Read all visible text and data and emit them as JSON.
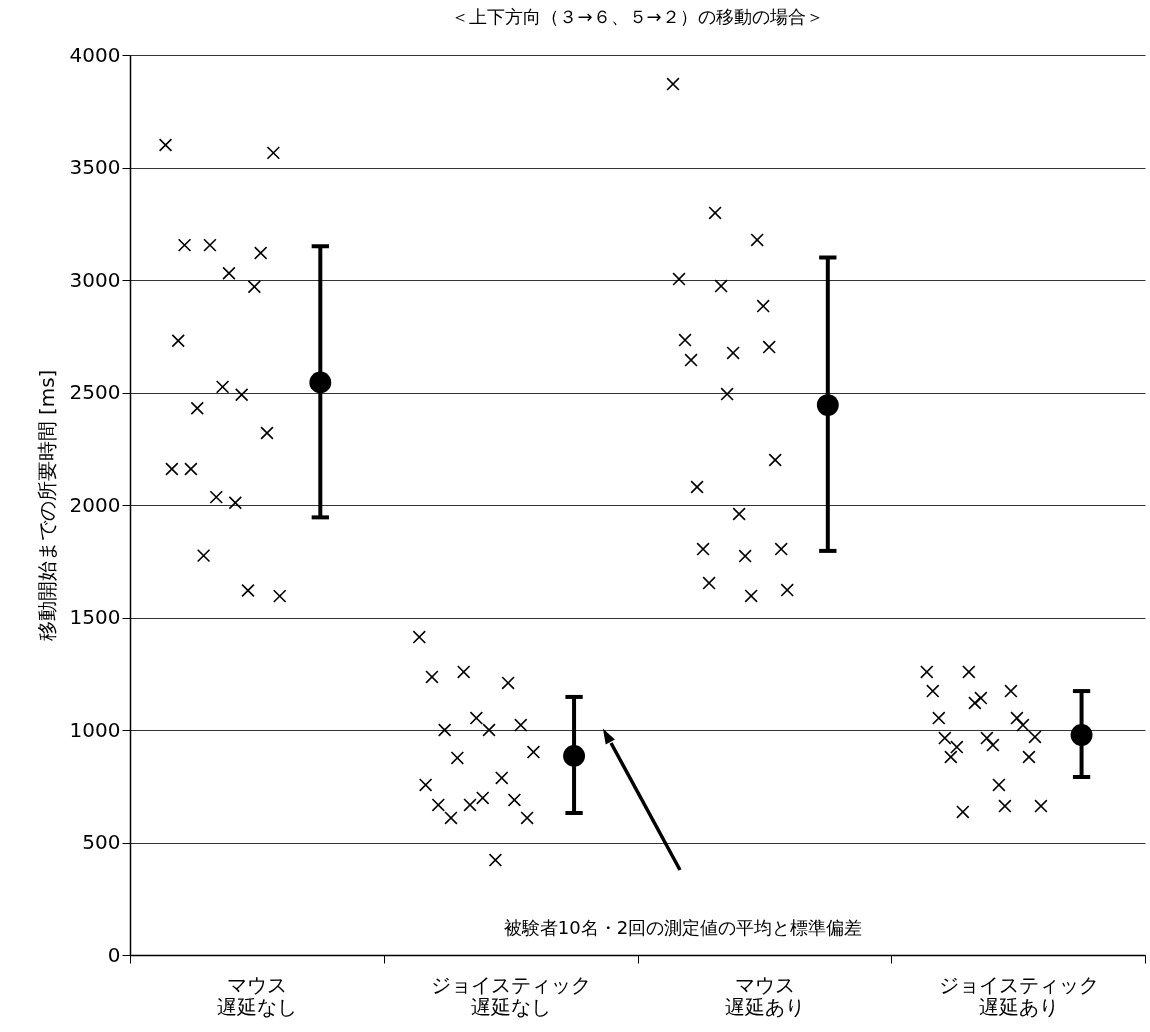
{
  "chart_data": {
    "type": "scatter",
    "title": "＜上下方向（３→６、５→２）の移動の場合＞",
    "ylabel": "移動開始までの所要時間 [ms]",
    "categories": [
      "マウス遅延なし",
      "ジョイスティック遅延なし",
      "マウス遅延あり",
      "ジョイスティック遅延あり"
    ],
    "ylim": [
      0,
      4000
    ],
    "yticks": [
      0,
      500,
      1000,
      1500,
      2000,
      2500,
      3000,
      3500,
      4000
    ],
    "grid": "y",
    "series": [
      {
        "marker": "cross",
        "color": "#000000",
        "x": [
          "マウス遅延なし",
          "マウス遅延なし",
          "マウス遅延なし",
          "マウス遅延なし",
          "マウス遅延なし",
          "マウス遅延なし",
          "マウス遅延なし",
          "マウス遅延なし",
          "マウス遅延なし",
          "マウス遅延なし",
          "マウス遅延なし",
          "マウス遅延なし",
          "マウス遅延なし",
          "マウス遅延なし",
          "マウス遅延なし",
          "マウス遅延なし",
          "マウス遅延なし",
          "マウス遅延なし",
          "マウス遅延なし",
          "ジョイスティック遅延なし",
          "ジョイスティック遅延なし",
          "ジョイスティック遅延なし",
          "ジョイスティック遅延なし",
          "ジョイスティック遅延なし",
          "ジョイスティック遅延なし",
          "ジョイスティック遅延なし",
          "ジョイスティック遅延なし",
          "ジョイスティック遅延なし",
          "ジョイスティック遅延なし",
          "ジョイスティック遅延なし",
          "ジョイスティック遅延なし",
          "ジョイスティック遅延なし",
          "ジョイスティック遅延なし",
          "ジョイスティック遅延なし",
          "ジョイスティック遅延なし",
          "ジョイスティック遅延なし",
          "ジョイスティック遅延なし",
          "ジョイスティック遅延なし",
          "マウス遅延あり",
          "マウス遅延あり",
          "マウス遅延あり",
          "マウス遅延あり",
          "マウス遅延あり",
          "マウス遅延あり",
          "マウス遅延あり",
          "マウス遅延あり",
          "マウス遅延あり",
          "マウス遅延あり",
          "マウス遅延あり",
          "マウス遅延あり",
          "マウス遅延あり",
          "マウス遅延あり",
          "マウス遅延あり",
          "マウス遅延あり",
          "マウス遅延あり",
          "マウス遅延あり",
          "マウス遅延あり",
          "マウス遅延あり",
          "ジョイスティック遅延あり",
          "ジョイスティック遅延あり",
          "ジョイスティック遅延あり",
          "ジョイスティック遅延あり",
          "ジョイスティック遅延あり",
          "ジョイスティック遅延あり",
          "ジョイスティック遅延あり",
          "ジョイスティック遅延あり",
          "ジョイスティック遅延あり",
          "ジョイスティック遅延あり",
          "ジョイスティック遅延あり",
          "ジョイスティック遅延あり",
          "ジョイスティック遅延あり",
          "ジョイスティック遅延あり",
          "ジョイスティック遅延あり",
          "ジョイスティック遅延あり",
          "ジョイスティック遅延あり",
          "ジョイスティック遅延あり",
          "ジョイスティック遅延あり",
          "ジョイスティック遅延あり"
        ],
        "values": [
          3600,
          3155,
          2970,
          2730,
          2525,
          2320,
          2160,
          2010,
          1595,
          1775,
          1620,
          2160,
          2035,
          3120,
          3155,
          3030,
          3565,
          2430,
          2490,
          1413,
          1258,
          1209,
          1236,
          1053,
          1022,
          1000,
          1000,
          902,
          876,
          787,
          756,
          667,
          689,
          667,
          698,
          609,
          609,
          422,
          3871,
          3298,
          3178,
          3004,
          2973,
          2884,
          2733,
          2493,
          2702,
          2644,
          2676,
          2200,
          2080,
          1960,
          1804,
          1804,
          1773,
          1622,
          1653,
          1596,
          1258,
          1258,
          1173,
          1173,
          1120,
          1053,
          1053,
          1142,
          1022,
          964,
          964,
          880,
          880,
          933,
          969,
          924,
          756,
          662,
          636,
          662
        ]
      },
      {
        "marker": "circle",
        "color": "#000000",
        "x": [
          "マウス遅延なし",
          "ジョイスティック遅延なし",
          "マウス遅延あり",
          "ジョイスティック遅延あり"
        ],
        "values": [
          2545,
          885,
          2444,
          978
        ],
        "errors": [
          [
            1945,
            3150
          ],
          [
            631,
            1147
          ],
          [
            1796,
            3100
          ],
          [
            791,
            1173
          ]
        ]
      }
    ],
    "annotations": [
      "被験者10名・2回の測定値の平均と標準偏差"
    ]
  }
}
